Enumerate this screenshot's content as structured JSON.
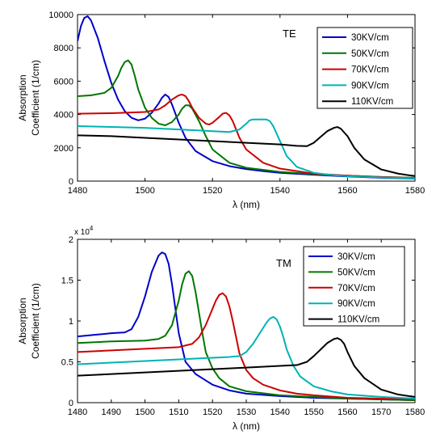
{
  "chart_data": [
    {
      "type": "line",
      "title": "",
      "annotation": "TE",
      "xlabel": "λ (nm)",
      "ylabel": [
        "Absorption",
        "Coefficient (1/cm)"
      ],
      "xlim": [
        1480,
        1580
      ],
      "ylim": [
        0,
        10000
      ],
      "xticks": [
        1480,
        1500,
        1520,
        1540,
        1560,
        1580
      ],
      "yticks": [
        0,
        2000,
        4000,
        6000,
        8000,
        10000
      ],
      "multiplier": "",
      "legend_position": "top-right",
      "grid": false,
      "series": [
        {
          "name": "30KV/cm",
          "color": "#0000cc",
          "x": [
            1480,
            1481,
            1482,
            1483,
            1484,
            1486,
            1488,
            1490,
            1492,
            1494,
            1496,
            1498,
            1500,
            1502,
            1504,
            1505,
            1506,
            1507,
            1508,
            1510,
            1512,
            1515,
            1520,
            1525,
            1530,
            1535,
            1540,
            1550,
            1560,
            1570,
            1580
          ],
          "y": [
            8400,
            9300,
            9800,
            9900,
            9650,
            8600,
            7200,
            5900,
            4900,
            4200,
            3800,
            3650,
            3750,
            4100,
            4650,
            5000,
            5200,
            5050,
            4600,
            3500,
            2600,
            1800,
            1200,
            900,
            720,
            600,
            500,
            380,
            280,
            200,
            150
          ]
        },
        {
          "name": "50KV/cm",
          "color": "#007700",
          "x": [
            1480,
            1484,
            1488,
            1490,
            1492,
            1493,
            1494,
            1495,
            1496,
            1497,
            1498,
            1500,
            1502,
            1504,
            1506,
            1508,
            1510,
            1511,
            1512,
            1513,
            1514,
            1516,
            1518,
            1520,
            1525,
            1530,
            1540,
            1550,
            1560,
            1570,
            1580
          ],
          "y": [
            5100,
            5150,
            5300,
            5600,
            6300,
            6800,
            7150,
            7250,
            7000,
            6300,
            5500,
            4400,
            3800,
            3450,
            3350,
            3550,
            4000,
            4350,
            4550,
            4550,
            4350,
            3600,
            2700,
            1900,
            1100,
            800,
            550,
            420,
            330,
            250,
            200
          ]
        },
        {
          "name": "70KV/cm",
          "color": "#cc0000",
          "x": [
            1480,
            1490,
            1500,
            1504,
            1506,
            1508,
            1510,
            1511,
            1512,
            1513,
            1514,
            1516,
            1518,
            1519,
            1520,
            1522,
            1523,
            1524,
            1525,
            1526,
            1528,
            1530,
            1535,
            1540,
            1550,
            1560,
            1570,
            1580
          ],
          "y": [
            4050,
            4080,
            4150,
            4300,
            4550,
            4900,
            5150,
            5200,
            5100,
            4800,
            4400,
            3800,
            3450,
            3400,
            3500,
            3850,
            4050,
            4100,
            3950,
            3600,
            2600,
            1900,
            1100,
            750,
            450,
            330,
            240,
            180
          ]
        },
        {
          "name": "90KV/cm",
          "color": "#00b3b3",
          "x": [
            1480,
            1490,
            1500,
            1510,
            1520,
            1525,
            1528,
            1530,
            1531,
            1532,
            1534,
            1536,
            1537,
            1538,
            1540,
            1542,
            1545,
            1550,
            1555,
            1560,
            1570,
            1580
          ],
          "y": [
            3300,
            3250,
            3200,
            3100,
            3000,
            2950,
            3100,
            3450,
            3650,
            3700,
            3700,
            3700,
            3600,
            3300,
            2400,
            1500,
            850,
            500,
            370,
            300,
            220,
            170
          ]
        },
        {
          "name": "110KV/cm",
          "color": "#000000",
          "x": [
            1480,
            1490,
            1500,
            1510,
            1520,
            1530,
            1540,
            1545,
            1548,
            1550,
            1552,
            1554,
            1556,
            1557,
            1558,
            1560,
            1562,
            1565,
            1570,
            1575,
            1580
          ],
          "y": [
            2750,
            2700,
            2600,
            2500,
            2400,
            2300,
            2200,
            2120,
            2100,
            2300,
            2650,
            3000,
            3200,
            3250,
            3150,
            2700,
            2000,
            1300,
            700,
            450,
            300
          ]
        }
      ]
    },
    {
      "type": "line",
      "title": "",
      "annotation": "TM",
      "xlabel": "λ (nm)",
      "ylabel": [
        "Absorption",
        "Coefficient (1/cm)"
      ],
      "xlim": [
        1480,
        1580
      ],
      "ylim": [
        0,
        2
      ],
      "xticks": [
        1480,
        1490,
        1500,
        1510,
        1520,
        1530,
        1540,
        1550,
        1560,
        1570,
        1580
      ],
      "yticks": [
        0,
        0.5,
        1,
        1.5,
        2
      ],
      "multiplier": "x 10",
      "multiplier_exp": "4",
      "legend_position": "top-right",
      "grid": false,
      "series": [
        {
          "name": "30KV/cm",
          "color": "#0000cc",
          "x": [
            1480,
            1485,
            1490,
            1494,
            1496,
            1498,
            1500,
            1502,
            1504,
            1505,
            1506,
            1507,
            1508,
            1509,
            1510,
            1512,
            1515,
            1520,
            1525,
            1530,
            1540,
            1550,
            1560,
            1570,
            1580
          ],
          "y": [
            0.81,
            0.83,
            0.85,
            0.86,
            0.9,
            1.05,
            1.3,
            1.6,
            1.8,
            1.84,
            1.82,
            1.7,
            1.45,
            1.15,
            0.85,
            0.5,
            0.35,
            0.22,
            0.15,
            0.11,
            0.08,
            0.06,
            0.05,
            0.04,
            0.03
          ]
        },
        {
          "name": "50KV/cm",
          "color": "#007700",
          "x": [
            1480,
            1490,
            1500,
            1504,
            1506,
            1508,
            1510,
            1511,
            1512,
            1513,
            1514,
            1515,
            1516,
            1517,
            1518,
            1520,
            1522,
            1525,
            1530,
            1540,
            1550,
            1560,
            1570,
            1580
          ],
          "y": [
            0.73,
            0.75,
            0.76,
            0.78,
            0.82,
            0.95,
            1.25,
            1.45,
            1.58,
            1.61,
            1.55,
            1.35,
            1.1,
            0.85,
            0.62,
            0.42,
            0.3,
            0.2,
            0.14,
            0.09,
            0.07,
            0.05,
            0.04,
            0.03
          ]
        },
        {
          "name": "70KV/cm",
          "color": "#cc0000",
          "x": [
            1480,
            1490,
            1500,
            1510,
            1514,
            1516,
            1518,
            1520,
            1521,
            1522,
            1523,
            1524,
            1525,
            1526,
            1527,
            1528,
            1530,
            1532,
            1535,
            1540,
            1545,
            1550,
            1560,
            1570,
            1580
          ],
          "y": [
            0.62,
            0.64,
            0.66,
            0.68,
            0.72,
            0.8,
            0.95,
            1.15,
            1.25,
            1.32,
            1.34,
            1.3,
            1.18,
            1.0,
            0.8,
            0.6,
            0.4,
            0.3,
            0.22,
            0.15,
            0.11,
            0.09,
            0.06,
            0.05,
            0.04
          ]
        },
        {
          "name": "90KV/cm",
          "color": "#00b3b3",
          "x": [
            1480,
            1490,
            1500,
            1510,
            1520,
            1525,
            1528,
            1530,
            1532,
            1534,
            1536,
            1537,
            1538,
            1539,
            1540,
            1541,
            1542,
            1544,
            1546,
            1550,
            1555,
            1560,
            1570,
            1580
          ],
          "y": [
            0.47,
            0.49,
            0.51,
            0.53,
            0.55,
            0.56,
            0.57,
            0.62,
            0.72,
            0.85,
            0.98,
            1.03,
            1.05,
            1.02,
            0.93,
            0.8,
            0.65,
            0.45,
            0.32,
            0.2,
            0.14,
            0.1,
            0.07,
            0.05
          ]
        },
        {
          "name": "110KV/cm",
          "color": "#000000",
          "x": [
            1480,
            1490,
            1500,
            1510,
            1520,
            1530,
            1540,
            1545,
            1548,
            1550,
            1552,
            1554,
            1556,
            1557,
            1558,
            1559,
            1560,
            1562,
            1565,
            1570,
            1575,
            1580
          ],
          "y": [
            0.33,
            0.35,
            0.37,
            0.39,
            0.41,
            0.43,
            0.45,
            0.46,
            0.5,
            0.57,
            0.65,
            0.73,
            0.78,
            0.79,
            0.77,
            0.72,
            0.62,
            0.45,
            0.3,
            0.16,
            0.1,
            0.07
          ]
        }
      ]
    }
  ]
}
